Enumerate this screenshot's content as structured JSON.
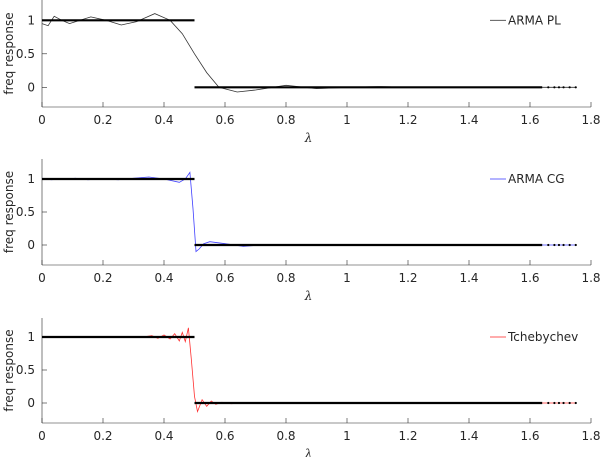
{
  "chart_data": [
    {
      "type": "line",
      "xlabel": "λ",
      "ylabel": "freq response",
      "xlim": [
        0,
        1.8
      ],
      "ylim": [
        -0.3,
        1.3
      ],
      "xticks": [
        "0",
        "0.2",
        "0.4",
        "0.6",
        "0.8",
        "1",
        "1.2",
        "1.4",
        "1.6",
        "1.8"
      ],
      "yticks": [
        "0",
        "0.5",
        "1"
      ],
      "grid": false,
      "legend_position": "top-right",
      "ideal": {
        "color": "#000000",
        "passband": [
          0,
          0.5,
          1
        ],
        "stopband": [
          0.5,
          1.75,
          0
        ]
      },
      "series": [
        {
          "name": "ARMA PL",
          "color": "#333333",
          "x": [
            0,
            0.02,
            0.04,
            0.065,
            0.09,
            0.125,
            0.16,
            0.21,
            0.26,
            0.31,
            0.37,
            0.42,
            0.46,
            0.5,
            0.54,
            0.58,
            0.64,
            0.7,
            0.8,
            0.9,
            1.0,
            1.1,
            1.2,
            1.3,
            1.5,
            1.75
          ],
          "y": [
            0.95,
            0.92,
            1.06,
            1.0,
            0.95,
            1.0,
            1.05,
            1.0,
            0.93,
            0.98,
            1.1,
            1.0,
            0.8,
            0.5,
            0.22,
            0.0,
            -0.07,
            -0.04,
            0.03,
            -0.02,
            0.0,
            0.01,
            0.0,
            0.0,
            0.0,
            0.0
          ]
        },
        {
          "name": "ARMA CG",
          "color": "#4040ff",
          "x": [
            0,
            0.03,
            0.07,
            0.11,
            0.15,
            0.2,
            0.25,
            0.3,
            0.35,
            0.4,
            0.45,
            0.47,
            0.485,
            0.495,
            0.505,
            0.515,
            0.53,
            0.55,
            0.6,
            0.66,
            0.72,
            0.8,
            1.0,
            1.75
          ],
          "y": [
            1.01,
            0.99,
            1.0,
            1.01,
            0.99,
            1.0,
            0.99,
            1.01,
            1.03,
            1.0,
            0.95,
            1.0,
            1.1,
            0.55,
            -0.1,
            -0.06,
            0.02,
            0.05,
            0.02,
            -0.02,
            0.0,
            0.0,
            0.0,
            0.0
          ]
        },
        {
          "name": "Tchebychev",
          "color": "#ff3030",
          "x": [
            0,
            0.33,
            0.36,
            0.38,
            0.4,
            0.42,
            0.435,
            0.45,
            0.46,
            0.47,
            0.48,
            0.49,
            0.5,
            0.51,
            0.525,
            0.54,
            0.555,
            0.57,
            0.59,
            0.62,
            0.66,
            0.7,
            1.0,
            1.75
          ],
          "y": [
            1.0,
            1.0,
            1.02,
            0.98,
            1.03,
            0.97,
            1.05,
            0.94,
            1.07,
            0.93,
            1.14,
            0.65,
            0.1,
            -0.13,
            0.05,
            -0.05,
            0.03,
            -0.02,
            0.01,
            -0.01,
            0.0,
            0.0,
            0.0,
            0.0
          ]
        }
      ]
    }
  ]
}
